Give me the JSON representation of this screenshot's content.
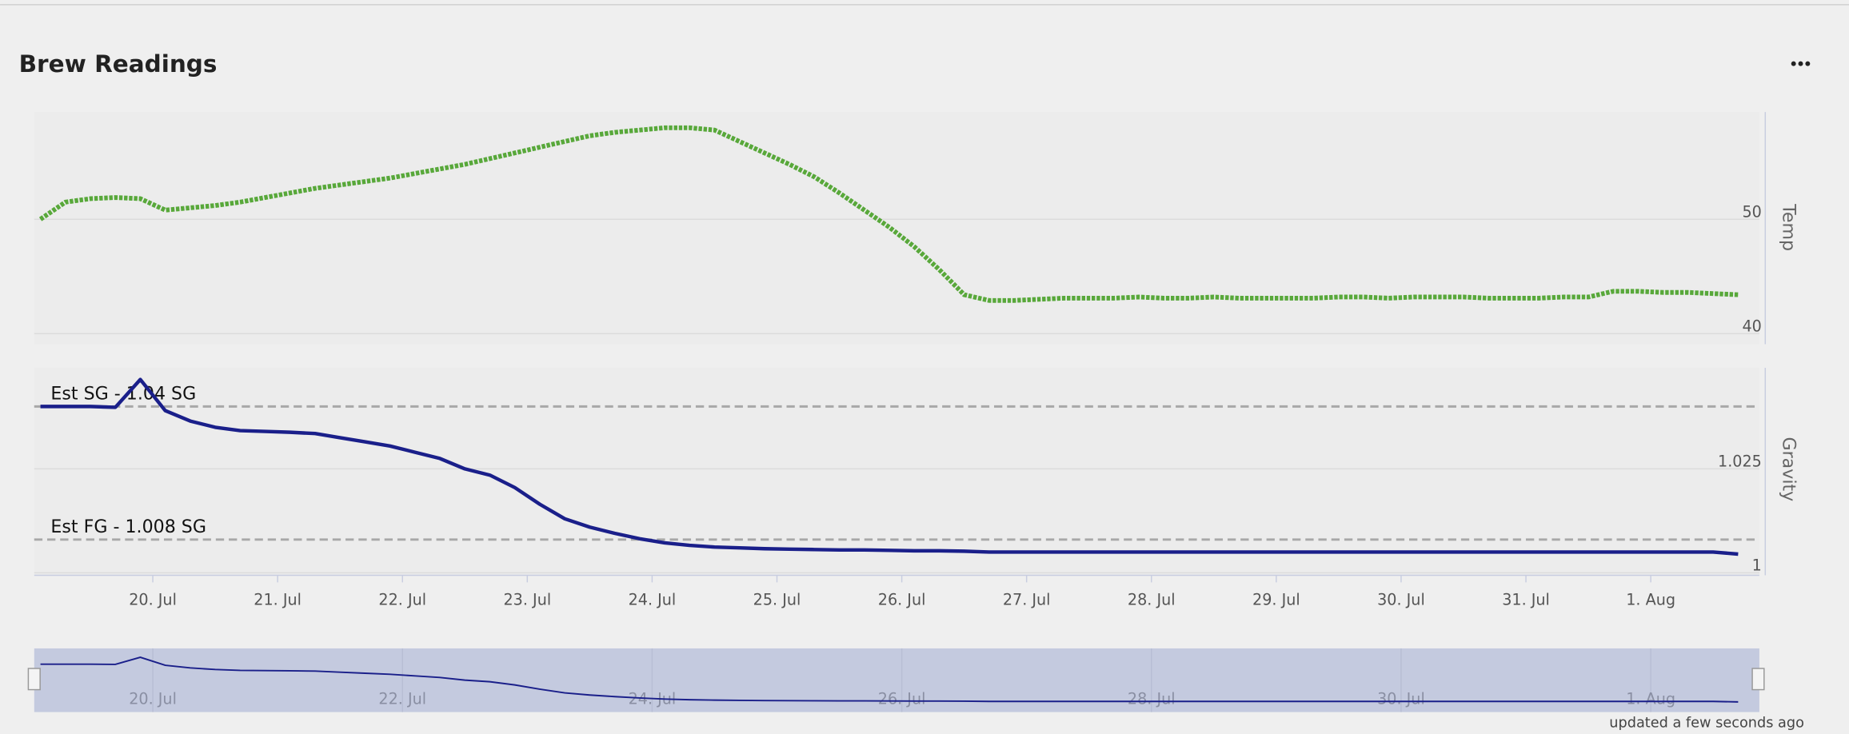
{
  "header": {
    "title": "Brew Readings"
  },
  "footer": "updated a few seconds ago",
  "chart_data": [
    {
      "type": "line",
      "y_title": "Temp",
      "x": [
        19.1,
        19.3,
        19.5,
        19.7,
        19.9,
        20.1,
        20.3,
        20.5,
        20.7,
        20.9,
        21.1,
        21.3,
        21.5,
        21.7,
        21.9,
        22.1,
        22.3,
        22.5,
        22.7,
        22.9,
        23.1,
        23.3,
        23.5,
        23.7,
        23.9,
        24.1,
        24.3,
        24.5,
        24.7,
        24.9,
        25.1,
        25.3,
        25.5,
        25.7,
        25.9,
        26.1,
        26.3,
        26.5,
        26.7,
        26.9,
        27.1,
        27.3,
        27.5,
        27.7,
        27.9,
        28.1,
        28.3,
        28.5,
        28.7,
        28.9,
        29.1,
        29.3,
        29.5,
        29.7,
        29.9,
        30.1,
        30.3,
        30.5,
        30.7,
        30.9,
        31.1,
        31.3,
        31.5,
        31.7,
        31.9,
        32.1,
        32.3,
        32.5,
        32.7
      ],
      "color": "#58a83a",
      "values": [
        50.0,
        51.5,
        51.8,
        51.9,
        51.8,
        50.8,
        51.0,
        51.2,
        51.5,
        51.9,
        52.3,
        52.7,
        53.0,
        53.3,
        53.6,
        54.0,
        54.4,
        54.8,
        55.3,
        55.8,
        56.3,
        56.8,
        57.3,
        57.6,
        57.8,
        58.0,
        58.0,
        57.8,
        56.8,
        55.8,
        54.8,
        53.7,
        52.3,
        50.8,
        49.3,
        47.6,
        45.6,
        43.4,
        42.9,
        42.9,
        43.0,
        43.1,
        43.1,
        43.1,
        43.2,
        43.1,
        43.1,
        43.2,
        43.1,
        43.1,
        43.1,
        43.1,
        43.2,
        43.2,
        43.1,
        43.2,
        43.2,
        43.2,
        43.1,
        43.1,
        43.1,
        43.2,
        43.2,
        43.7,
        43.7,
        43.6,
        43.6,
        43.5,
        43.4
      ],
      "xlim": [
        19.05,
        32.87
      ],
      "ylim": [
        39.07,
        59.38
      ],
      "yticks": [
        40,
        50
      ]
    },
    {
      "type": "line",
      "y_title": "Gravity",
      "x": [
        19.1,
        19.3,
        19.5,
        19.7,
        19.9,
        20.1,
        20.3,
        20.5,
        20.7,
        20.9,
        21.1,
        21.3,
        21.5,
        21.7,
        21.9,
        22.1,
        22.3,
        22.5,
        22.7,
        22.9,
        23.1,
        23.3,
        23.5,
        23.7,
        23.9,
        24.1,
        24.3,
        24.5,
        24.7,
        24.9,
        25.1,
        25.3,
        25.5,
        25.7,
        25.9,
        26.1,
        26.3,
        26.5,
        26.7,
        26.9,
        27.1,
        27.3,
        27.5,
        27.7,
        27.9,
        28.1,
        28.3,
        28.5,
        28.7,
        28.9,
        29.1,
        29.3,
        29.5,
        29.7,
        29.9,
        30.1,
        30.3,
        30.5,
        30.7,
        30.9,
        31.1,
        31.3,
        31.5,
        31.7,
        31.9,
        32.1,
        32.3,
        32.5,
        32.7
      ],
      "color": "#1a1f8a",
      "values": [
        1.04,
        1.04,
        1.04,
        1.0398,
        1.0465,
        1.039,
        1.0365,
        1.035,
        1.0342,
        1.034,
        1.0338,
        1.0335,
        1.0325,
        1.0315,
        1.0305,
        1.029,
        1.0275,
        1.025,
        1.0235,
        1.0205,
        1.0165,
        1.013,
        1.011,
        1.0095,
        1.0082,
        1.0072,
        1.0066,
        1.0062,
        1.006,
        1.0058,
        1.0057,
        1.0056,
        1.0055,
        1.0055,
        1.0054,
        1.0053,
        1.0053,
        1.0052,
        1.005,
        1.005,
        1.005,
        1.005,
        1.005,
        1.005,
        1.005,
        1.005,
        1.005,
        1.005,
        1.005,
        1.005,
        1.005,
        1.005,
        1.005,
        1.005,
        1.005,
        1.005,
        1.005,
        1.005,
        1.005,
        1.005,
        1.005,
        1.005,
        1.005,
        1.005,
        1.005,
        1.005,
        1.005,
        1.005,
        1.0045
      ],
      "xlim": [
        19.05,
        32.87
      ],
      "ylim": [
        0.9994,
        1.0493
      ],
      "yticks": [
        1,
        1.025
      ],
      "plot_lines": [
        {
          "value": 1.04,
          "label": "Est SG - 1.04 SG"
        },
        {
          "value": 1.008,
          "label": "Est FG - 1.008 SG"
        }
      ],
      "xticks": [
        {
          "value": 20,
          "label": "20. Jul"
        },
        {
          "value": 21,
          "label": "21. Jul"
        },
        {
          "value": 22,
          "label": "22. Jul"
        },
        {
          "value": 23,
          "label": "23. Jul"
        },
        {
          "value": 24,
          "label": "24. Jul"
        },
        {
          "value": 25,
          "label": "25. Jul"
        },
        {
          "value": 26,
          "label": "26. Jul"
        },
        {
          "value": 27,
          "label": "27. Jul"
        },
        {
          "value": 28,
          "label": "28. Jul"
        },
        {
          "value": 29,
          "label": "29. Jul"
        },
        {
          "value": 30,
          "label": "30. Jul"
        },
        {
          "value": 31,
          "label": "31. Jul"
        },
        {
          "value": 32,
          "label": "1. Aug"
        }
      ]
    }
  ],
  "navigator": {
    "xlim": [
      19.05,
      32.87
    ],
    "xticks": [
      {
        "value": 20,
        "label": "20. Jul"
      },
      {
        "value": 22,
        "label": "22. Jul"
      },
      {
        "value": 24,
        "label": "24. Jul"
      },
      {
        "value": 26,
        "label": "26. Jul"
      },
      {
        "value": 28,
        "label": "28. Jul"
      },
      {
        "value": 30,
        "label": "30. Jul"
      },
      {
        "value": 32,
        "label": "1. Aug"
      }
    ]
  }
}
